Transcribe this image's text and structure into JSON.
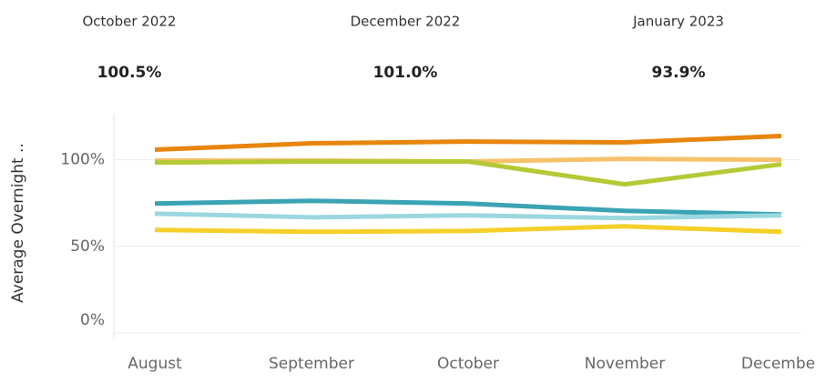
{
  "kpis": [
    {
      "label": "October 2022",
      "value": "100.5%"
    },
    {
      "label": "December 2022",
      "value": "101.0%"
    },
    {
      "label": "January 2023",
      "value": "93.9%"
    }
  ],
  "chart_data": {
    "type": "line",
    "y_label": "Average Overnight ..",
    "categories": [
      "August",
      "September",
      "October",
      "November",
      "December"
    ],
    "series": [
      {
        "color": "#e8850c",
        "values": [
          105.8,
          109.5,
          110.5,
          110,
          113.7
        ]
      },
      {
        "color": "#f5c26b",
        "values": [
          99.5,
          99.5,
          99,
          100.5,
          100
        ]
      },
      {
        "color": "#b5c935",
        "values": [
          98.4,
          99,
          99,
          85.8,
          97.4
        ]
      },
      {
        "color": "#3aa3b4",
        "values": [
          74.7,
          76.3,
          74.7,
          70.5,
          68.4
        ]
      },
      {
        "color": "#9bd7df",
        "values": [
          68.9,
          66.8,
          67.9,
          66.3,
          67.9
        ]
      },
      {
        "color": "#f5d02b",
        "values": [
          59.5,
          58.4,
          58.9,
          61.6,
          58.4
        ]
      }
    ],
    "ylim": [
      0,
      125
    ],
    "yticks": [
      {
        "value": 0,
        "label": "0%"
      },
      {
        "value": 50,
        "label": "50%"
      },
      {
        "value": 100,
        "label": "100%"
      }
    ],
    "grid": true
  }
}
